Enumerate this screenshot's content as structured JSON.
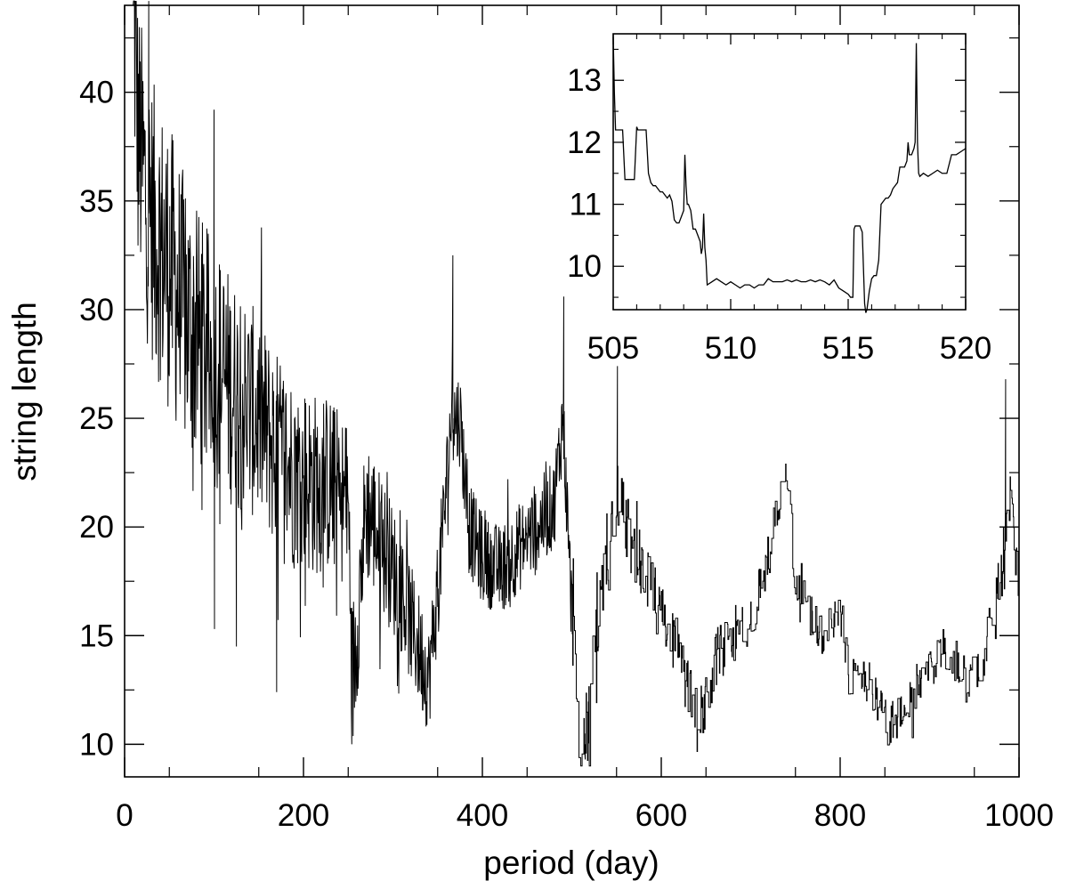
{
  "chart_data": [
    {
      "type": "line",
      "title": "",
      "xlabel": "period (day)",
      "ylabel": "string length",
      "xlim": [
        0,
        1000
      ],
      "ylim": [
        8.5,
        44
      ],
      "xticks": [
        0,
        200,
        400,
        600,
        800,
        1000
      ],
      "xtick_labels": [
        "0",
        "200",
        "400",
        "600",
        "800",
        "1000"
      ],
      "yticks": [
        10,
        15,
        20,
        25,
        30,
        35,
        40
      ],
      "ytick_labels": [
        "10",
        "15",
        "20",
        "25",
        "30",
        "35",
        "40"
      ],
      "grid": false,
      "legend": "none",
      "line_color": "#000000",
      "anchor_points": {
        "x": [
          0,
          10,
          15,
          25,
          35,
          50,
          70,
          90,
          100,
          125,
          150,
          170,
          190,
          210,
          230,
          250,
          255,
          270,
          290,
          310,
          320,
          340,
          350,
          360,
          365,
          375,
          385,
          400,
          420,
          440,
          460,
          480,
          490,
          500,
          510,
          515,
          520,
          530,
          540,
          550,
          560,
          580,
          600,
          620,
          630,
          640,
          650,
          660,
          680,
          700,
          715,
          730,
          740,
          750,
          765,
          780,
          800,
          810,
          830,
          850,
          860,
          870,
          900,
          920,
          940,
          960,
          970,
          980,
          990,
          1000
        ],
        "y": [
          44,
          44,
          38,
          35,
          33.5,
          32,
          29.5,
          28,
          27.5,
          26,
          25,
          23.5,
          22.5,
          22,
          22,
          21,
          13,
          21,
          19,
          17,
          15.5,
          13,
          17,
          22,
          25,
          25,
          20,
          18.5,
          18,
          19,
          20,
          21,
          25,
          16,
          10,
          10,
          12,
          16,
          18,
          22,
          20,
          18,
          16,
          14,
          12.5,
          11,
          12,
          14,
          15,
          16,
          18,
          20.5,
          22,
          18,
          16,
          15,
          16,
          13,
          13,
          11,
          11,
          11.5,
          13.5,
          14.5,
          13,
          14,
          16,
          18,
          21.5,
          17
        ]
      },
      "noise_profile": {
        "x": [
          0,
          50,
          100,
          150,
          200,
          250,
          300,
          350,
          400,
          500,
          600,
          700,
          800,
          900,
          1000
        ],
        "amplitude": [
          4.0,
          4.2,
          3.6,
          3.0,
          2.8,
          2.4,
          1.9,
          1.5,
          1.3,
          1.3,
          0.9,
          0.8,
          0.7,
          0.6,
          0.8
        ]
      },
      "notable_points": [
        {
          "x": 27,
          "y": 44.2
        },
        {
          "x": 100,
          "y": 39.2
        },
        {
          "x": 100.5,
          "y": 15.3
        },
        {
          "x": 125,
          "y": 14.5
        },
        {
          "x": 170,
          "y": 12.4
        },
        {
          "x": 254,
          "y": 10.0
        },
        {
          "x": 367,
          "y": 32.5
        },
        {
          "x": 491,
          "y": 30.6
        },
        {
          "x": 515,
          "y": 9.3
        },
        {
          "x": 551,
          "y": 27.4
        },
        {
          "x": 985,
          "y": 26.8
        }
      ]
    },
    {
      "type": "line",
      "title": "",
      "xlabel": "",
      "ylabel": "",
      "xlim": [
        505,
        520
      ],
      "ylim": [
        9.3,
        13.75
      ],
      "xticks": [
        505,
        510,
        515,
        520
      ],
      "xtick_labels": [
        "505",
        "510",
        "515",
        "520"
      ],
      "yticks": [
        10,
        11,
        12,
        13
      ],
      "ytick_labels": [
        "10",
        "11",
        "12",
        "13"
      ],
      "grid": false,
      "legend": "none",
      "line_color": "#000000",
      "x": [
        505.0,
        505.05,
        505.1,
        505.2,
        505.4,
        505.5,
        505.6,
        505.7,
        505.9,
        506.0,
        506.05,
        506.1,
        506.15,
        506.2,
        506.4,
        506.5,
        506.6,
        506.7,
        506.8,
        506.9,
        507.0,
        507.1,
        507.2,
        507.3,
        507.4,
        507.5,
        507.6,
        507.7,
        507.8,
        507.9,
        507.95,
        508.0,
        508.05,
        508.1,
        508.15,
        508.2,
        508.3,
        508.4,
        508.5,
        508.6,
        508.7,
        508.75,
        508.8,
        508.85,
        508.9,
        508.95,
        509.0,
        509.2,
        509.4,
        509.6,
        509.8,
        510.0,
        510.2,
        510.4,
        510.6,
        510.8,
        511.0,
        511.2,
        511.4,
        511.6,
        511.8,
        512.0,
        512.2,
        512.4,
        512.6,
        512.8,
        513.0,
        513.2,
        513.4,
        513.6,
        513.8,
        514.0,
        514.2,
        514.4,
        514.6,
        514.8,
        515.0,
        515.1,
        515.2,
        515.25,
        515.3,
        515.5,
        515.6,
        515.7,
        515.75,
        515.8,
        515.9,
        516.0,
        516.1,
        516.2,
        516.3,
        516.4,
        516.5,
        516.6,
        516.7,
        516.8,
        516.9,
        517.0,
        517.1,
        517.2,
        517.3,
        517.4,
        517.5,
        517.55,
        517.6,
        517.7,
        517.8,
        517.85,
        517.9,
        517.95,
        518.0,
        518.05,
        518.2,
        518.4,
        518.6,
        518.8,
        519.0,
        519.2,
        519.4,
        519.6,
        519.8,
        520.0
      ],
      "y": [
        13.7,
        12.8,
        12.2,
        12.2,
        12.2,
        11.4,
        11.4,
        11.4,
        11.4,
        12.25,
        12.2,
        12.2,
        12.2,
        12.2,
        12.2,
        11.5,
        11.35,
        11.3,
        11.3,
        11.25,
        11.2,
        11.2,
        11.15,
        11.1,
        11.15,
        11.05,
        10.75,
        10.7,
        10.7,
        10.8,
        10.85,
        10.9,
        11.8,
        11.3,
        11.0,
        11.0,
        10.9,
        10.6,
        10.6,
        10.5,
        10.4,
        10.2,
        10.3,
        10.85,
        10.3,
        10.1,
        9.7,
        9.75,
        9.8,
        9.75,
        9.7,
        9.75,
        9.7,
        9.65,
        9.7,
        9.7,
        9.65,
        9.7,
        9.7,
        9.8,
        9.75,
        9.75,
        9.75,
        9.78,
        9.75,
        9.78,
        9.75,
        9.75,
        9.78,
        9.75,
        9.78,
        9.75,
        9.7,
        9.78,
        9.65,
        9.6,
        9.55,
        9.5,
        9.5,
        10.6,
        10.65,
        10.65,
        10.55,
        9.4,
        9.25,
        9.3,
        9.6,
        9.8,
        9.85,
        9.85,
        10.1,
        11.0,
        11.05,
        11.1,
        11.1,
        11.15,
        11.25,
        11.3,
        11.35,
        11.6,
        11.6,
        11.6,
        11.7,
        12.0,
        11.8,
        11.8,
        11.9,
        12.0,
        13.6,
        12.0,
        11.5,
        11.45,
        11.5,
        11.45,
        11.5,
        11.55,
        11.5,
        11.5,
        11.8,
        11.8,
        11.85,
        11.9
      ]
    }
  ]
}
